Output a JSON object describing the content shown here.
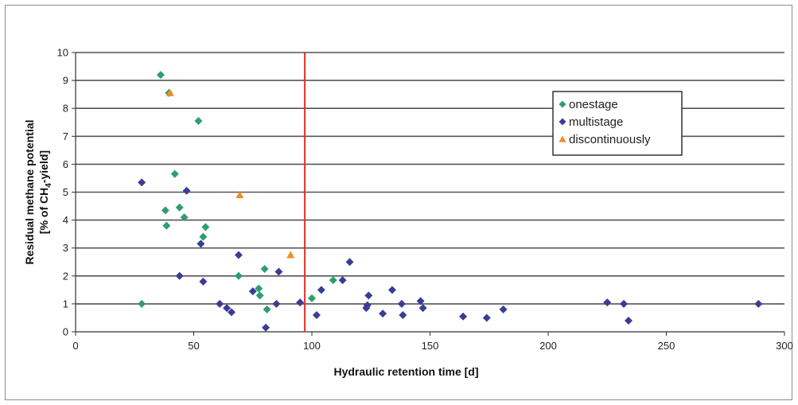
{
  "chart_data": {
    "type": "scatter",
    "xlabel": "Hydraulic retention time [d]",
    "ylabel_line1": "Residual methane potential",
    "ylabel_line2_prefix": "[% of CH",
    "ylabel_line2_sub": "4",
    "ylabel_line2_suffix": "-yield]",
    "xlim": [
      0,
      300
    ],
    "ylim": [
      0,
      10
    ],
    "x_ticks": [
      "0",
      "50",
      "100",
      "150",
      "200",
      "250",
      "300"
    ],
    "y_ticks": [
      "0",
      "1",
      "2",
      "3",
      "4",
      "5",
      "6",
      "7",
      "8",
      "9",
      "10"
    ],
    "grid": "horizontal",
    "legend_position": "top-right",
    "threshold_x": 97,
    "colors": {
      "onestage": "#2e9e6e",
      "multistage": "#3a3d94",
      "discontinuously": "#f28c28",
      "threshold": "#e8302a",
      "grid": "#555555"
    },
    "series": [
      {
        "name": "onestage",
        "marker": "diamond",
        "points": [
          [
            28,
            1.0
          ],
          [
            36,
            9.2
          ],
          [
            38,
            4.35
          ],
          [
            38.5,
            3.8
          ],
          [
            39.5,
            8.55
          ],
          [
            42,
            5.65
          ],
          [
            44,
            4.45
          ],
          [
            46,
            4.1
          ],
          [
            52,
            7.55
          ],
          [
            54,
            3.4
          ],
          [
            55,
            3.75
          ],
          [
            69,
            2.0
          ],
          [
            77.5,
            1.55
          ],
          [
            78,
            1.3
          ],
          [
            80,
            2.25
          ],
          [
            81,
            0.8
          ],
          [
            100,
            1.2
          ],
          [
            109,
            1.85
          ]
        ]
      },
      {
        "name": "multistage",
        "marker": "diamond",
        "points": [
          [
            28,
            5.35
          ],
          [
            44,
            2.0
          ],
          [
            47,
            5.05
          ],
          [
            53,
            3.15
          ],
          [
            54,
            1.8
          ],
          [
            61,
            1.0
          ],
          [
            64,
            0.85
          ],
          [
            66,
            0.7
          ],
          [
            69,
            2.75
          ],
          [
            75,
            1.45
          ],
          [
            80.5,
            0.15
          ],
          [
            85,
            1.0
          ],
          [
            86,
            2.15
          ],
          [
            95,
            1.05
          ],
          [
            102,
            0.6
          ],
          [
            104,
            1.5
          ],
          [
            113,
            1.85
          ],
          [
            116,
            2.5
          ],
          [
            123,
            0.85
          ],
          [
            123.5,
            0.95
          ],
          [
            124,
            1.3
          ],
          [
            130,
            0.65
          ],
          [
            134,
            1.5
          ],
          [
            138,
            1.0
          ],
          [
            138.5,
            0.6
          ],
          [
            146,
            1.1
          ],
          [
            147,
            0.85
          ],
          [
            164,
            0.55
          ],
          [
            174,
            0.5
          ],
          [
            181,
            0.8
          ],
          [
            225,
            1.05
          ],
          [
            232,
            1.0
          ],
          [
            234,
            0.4
          ],
          [
            289,
            1.0
          ]
        ]
      },
      {
        "name": "discontinuously",
        "marker": "triangle",
        "points": [
          [
            40,
            8.55
          ],
          [
            69.5,
            4.9
          ],
          [
            91,
            2.75
          ]
        ]
      }
    ]
  }
}
